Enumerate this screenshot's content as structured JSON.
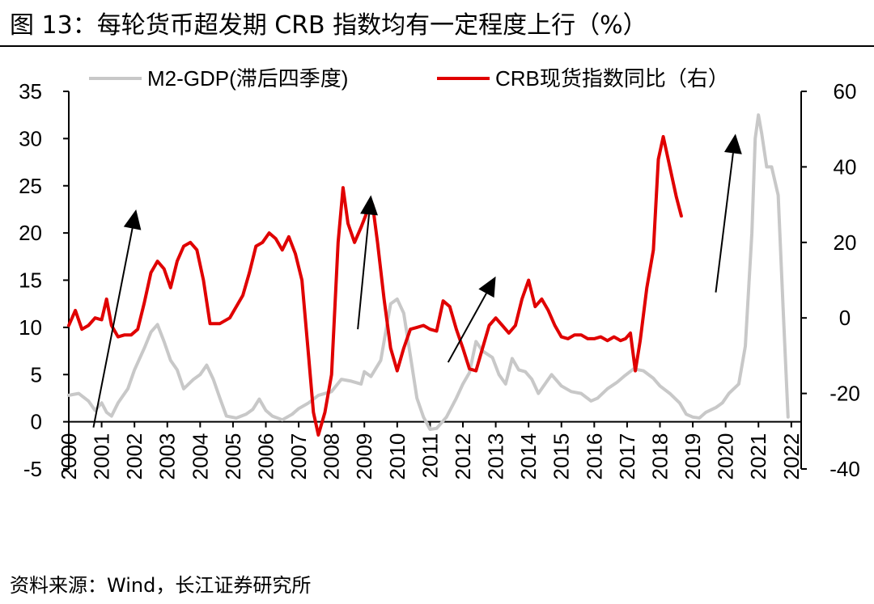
{
  "header": {
    "title": "图 13：每轮货币超发期 CRB 指数均有一定程度上行（%）"
  },
  "footer": {
    "source": "资料来源：Wind，长江证券研究所"
  },
  "chart_data": {
    "type": "line",
    "x_label_years": [
      "2000",
      "2001",
      "2002",
      "2003",
      "2004",
      "2005",
      "2006",
      "2007",
      "2008",
      "2009",
      "2010",
      "2011",
      "2012",
      "2013",
      "2014",
      "2015",
      "2016",
      "2017",
      "2018",
      "2019",
      "2020",
      "2021",
      "2022"
    ],
    "x_range": [
      2000.0,
      2022.3
    ],
    "left_axis": {
      "ylim": [
        -5,
        35
      ],
      "ticks": [
        -5,
        0,
        5,
        10,
        15,
        20,
        25,
        30,
        35
      ]
    },
    "right_axis": {
      "ylim": [
        -40,
        60
      ],
      "ticks": [
        -40,
        -20,
        0,
        20,
        40,
        60
      ]
    },
    "colors": {
      "m2": "#c8c8c8",
      "crb": "#e00000",
      "arrow": "#000000"
    },
    "series": [
      {
        "name": "M2-GDP(滞后四季度)",
        "axis": "left",
        "points": [
          [
            2000.0,
            2.8
          ],
          [
            2000.3,
            3.0
          ],
          [
            2000.6,
            2.2
          ],
          [
            2000.8,
            1.2
          ],
          [
            2001.0,
            2.0
          ],
          [
            2001.15,
            1.0
          ],
          [
            2001.3,
            0.6
          ],
          [
            2001.5,
            2.0
          ],
          [
            2001.8,
            3.5
          ],
          [
            2002.0,
            5.5
          ],
          [
            2002.3,
            7.8
          ],
          [
            2002.5,
            9.5
          ],
          [
            2002.7,
            10.3
          ],
          [
            2002.9,
            8.5
          ],
          [
            2003.1,
            6.5
          ],
          [
            2003.3,
            5.5
          ],
          [
            2003.5,
            3.5
          ],
          [
            2003.8,
            4.5
          ],
          [
            2004.0,
            5.0
          ],
          [
            2004.2,
            6.0
          ],
          [
            2004.4,
            4.5
          ],
          [
            2004.6,
            2.5
          ],
          [
            2004.8,
            0.6
          ],
          [
            2005.1,
            0.4
          ],
          [
            2005.4,
            0.8
          ],
          [
            2005.6,
            1.3
          ],
          [
            2005.8,
            2.4
          ],
          [
            2006.0,
            1.2
          ],
          [
            2006.2,
            0.6
          ],
          [
            2006.5,
            0.2
          ],
          [
            2006.8,
            0.8
          ],
          [
            2007.0,
            1.4
          ],
          [
            2007.3,
            2.0
          ],
          [
            2007.6,
            2.8
          ],
          [
            2008.0,
            3.2
          ],
          [
            2008.3,
            4.5
          ],
          [
            2008.6,
            4.3
          ],
          [
            2008.9,
            4.0
          ],
          [
            2009.0,
            5.3
          ],
          [
            2009.2,
            4.8
          ],
          [
            2009.5,
            6.5
          ],
          [
            2009.8,
            12.5
          ],
          [
            2010.0,
            13.0
          ],
          [
            2010.2,
            11.5
          ],
          [
            2010.4,
            7.0
          ],
          [
            2010.6,
            2.5
          ],
          [
            2010.8,
            0.5
          ],
          [
            2011.0,
            -0.8
          ],
          [
            2011.2,
            -0.7
          ],
          [
            2011.5,
            0.5
          ],
          [
            2011.8,
            2.5
          ],
          [
            2012.0,
            4.0
          ],
          [
            2012.2,
            5.2
          ],
          [
            2012.4,
            8.5
          ],
          [
            2012.6,
            7.5
          ],
          [
            2012.9,
            6.8
          ],
          [
            2013.1,
            5.0
          ],
          [
            2013.3,
            4.0
          ],
          [
            2013.5,
            6.7
          ],
          [
            2013.7,
            5.5
          ],
          [
            2013.9,
            5.3
          ],
          [
            2014.1,
            4.5
          ],
          [
            2014.3,
            3.0
          ],
          [
            2014.5,
            4.0
          ],
          [
            2014.7,
            5.0
          ],
          [
            2015.0,
            3.8
          ],
          [
            2015.3,
            3.2
          ],
          [
            2015.6,
            3.0
          ],
          [
            2015.9,
            2.2
          ],
          [
            2016.1,
            2.5
          ],
          [
            2016.4,
            3.5
          ],
          [
            2016.7,
            4.2
          ],
          [
            2016.9,
            4.8
          ],
          [
            2017.2,
            5.6
          ],
          [
            2017.5,
            5.4
          ],
          [
            2017.8,
            4.6
          ],
          [
            2018.0,
            3.8
          ],
          [
            2018.3,
            3.0
          ],
          [
            2018.6,
            2.0
          ],
          [
            2018.8,
            0.8
          ],
          [
            2019.0,
            0.5
          ],
          [
            2019.2,
            0.4
          ],
          [
            2019.4,
            1.0
          ],
          [
            2019.7,
            1.5
          ],
          [
            2019.9,
            2.0
          ],
          [
            2020.1,
            3.0
          ],
          [
            2020.4,
            4.0
          ],
          [
            2020.6,
            8.0
          ],
          [
            2020.8,
            20.0
          ],
          [
            2020.9,
            30.0
          ],
          [
            2021.0,
            32.5
          ],
          [
            2021.1,
            30.5
          ],
          [
            2021.25,
            27.0
          ],
          [
            2021.4,
            27.0
          ],
          [
            2021.6,
            24.0
          ],
          [
            2021.75,
            12.0
          ],
          [
            2021.9,
            0.5
          ]
        ]
      },
      {
        "name": "CRB现货指数同比（右）",
        "axis": "right",
        "points": [
          [
            2000.0,
            -2.0
          ],
          [
            2000.2,
            2.0
          ],
          [
            2000.4,
            -3.0
          ],
          [
            2000.6,
            -2.0
          ],
          [
            2000.8,
            0.0
          ],
          [
            2001.0,
            -0.5
          ],
          [
            2001.15,
            5.0
          ],
          [
            2001.3,
            -2.0
          ],
          [
            2001.5,
            -5.0
          ],
          [
            2001.7,
            -4.5
          ],
          [
            2001.9,
            -4.5
          ],
          [
            2002.1,
            -3.0
          ],
          [
            2002.3,
            4.0
          ],
          [
            2002.5,
            12.0
          ],
          [
            2002.7,
            15.0
          ],
          [
            2002.9,
            13.0
          ],
          [
            2003.1,
            8.0
          ],
          [
            2003.3,
            15.0
          ],
          [
            2003.5,
            19.0
          ],
          [
            2003.7,
            20.0
          ],
          [
            2003.9,
            18.0
          ],
          [
            2004.1,
            10.0
          ],
          [
            2004.3,
            -1.5
          ],
          [
            2004.6,
            -1.5
          ],
          [
            2004.9,
            0.0
          ],
          [
            2005.1,
            3.0
          ],
          [
            2005.3,
            6.0
          ],
          [
            2005.5,
            12.0
          ],
          [
            2005.7,
            19.0
          ],
          [
            2005.9,
            20.0
          ],
          [
            2006.1,
            22.5
          ],
          [
            2006.3,
            21.0
          ],
          [
            2006.5,
            18.0
          ],
          [
            2006.7,
            21.5
          ],
          [
            2006.9,
            17.0
          ],
          [
            2007.1,
            10.0
          ],
          [
            2007.3,
            -10.0
          ],
          [
            2007.45,
            -25.0
          ],
          [
            2007.6,
            -31.0
          ],
          [
            2007.8,
            -25.0
          ],
          [
            2008.0,
            -15.0
          ],
          [
            2008.2,
            20.0
          ],
          [
            2008.35,
            34.5
          ],
          [
            2008.5,
            25.0
          ],
          [
            2008.7,
            20.0
          ],
          [
            2008.9,
            24.0
          ],
          [
            2009.1,
            28.5
          ],
          [
            2009.25,
            30.0
          ],
          [
            2009.4,
            20.0
          ],
          [
            2009.6,
            5.0
          ],
          [
            2009.8,
            -8.0
          ],
          [
            2010.0,
            -14.0
          ],
          [
            2010.2,
            -8.0
          ],
          [
            2010.4,
            -3.0
          ],
          [
            2010.6,
            -2.5
          ],
          [
            2010.8,
            -2.0
          ],
          [
            2011.0,
            -3.0
          ],
          [
            2011.2,
            -3.5
          ],
          [
            2011.4,
            4.5
          ],
          [
            2011.6,
            3.0
          ],
          [
            2011.8,
            -3.0
          ],
          [
            2012.0,
            -8.0
          ],
          [
            2012.2,
            -13.5
          ],
          [
            2012.4,
            -14.0
          ],
          [
            2012.6,
            -8.0
          ],
          [
            2012.8,
            -2.0
          ],
          [
            2013.0,
            0.0
          ],
          [
            2013.2,
            -2.0
          ],
          [
            2013.4,
            -4.0
          ],
          [
            2013.6,
            -2.0
          ],
          [
            2013.8,
            5.0
          ],
          [
            2014.0,
            10.0
          ],
          [
            2014.2,
            3.0
          ],
          [
            2014.4,
            5.0
          ],
          [
            2014.6,
            2.0
          ],
          [
            2014.8,
            -2.0
          ],
          [
            2015.0,
            -5.0
          ],
          [
            2015.2,
            -5.5
          ],
          [
            2015.4,
            -4.5
          ],
          [
            2015.6,
            -4.5
          ],
          [
            2015.8,
            -5.5
          ],
          [
            2016.0,
            -5.5
          ],
          [
            2016.2,
            -5.0
          ],
          [
            2016.4,
            -6.0
          ],
          [
            2016.6,
            -5.0
          ],
          [
            2016.8,
            -6.0
          ],
          [
            2016.95,
            -5.5
          ],
          [
            2017.1,
            -4.0
          ],
          [
            2017.25,
            -14.0
          ],
          [
            2017.4,
            -6.0
          ],
          [
            2017.6,
            8.0
          ],
          [
            2017.8,
            18.0
          ],
          [
            2017.95,
            42.0
          ],
          [
            2018.1,
            48.0
          ],
          [
            2018.3,
            40.0
          ],
          [
            2018.5,
            32.0
          ],
          [
            2018.65,
            27.0
          ]
        ]
      }
    ],
    "arrows_data_units": [
      {
        "from": [
          2000.75,
          -0.6
        ],
        "to": [
          2002.05,
          22.5
        ]
      },
      {
        "from": [
          2008.8,
          9.8
        ],
        "to": [
          2009.2,
          24.0
        ]
      },
      {
        "from": [
          2011.55,
          6.3
        ],
        "to": [
          2013.0,
          15.4
        ]
      },
      {
        "from": [
          2019.7,
          13.7
        ],
        "to": [
          2020.3,
          30.5
        ]
      }
    ]
  }
}
